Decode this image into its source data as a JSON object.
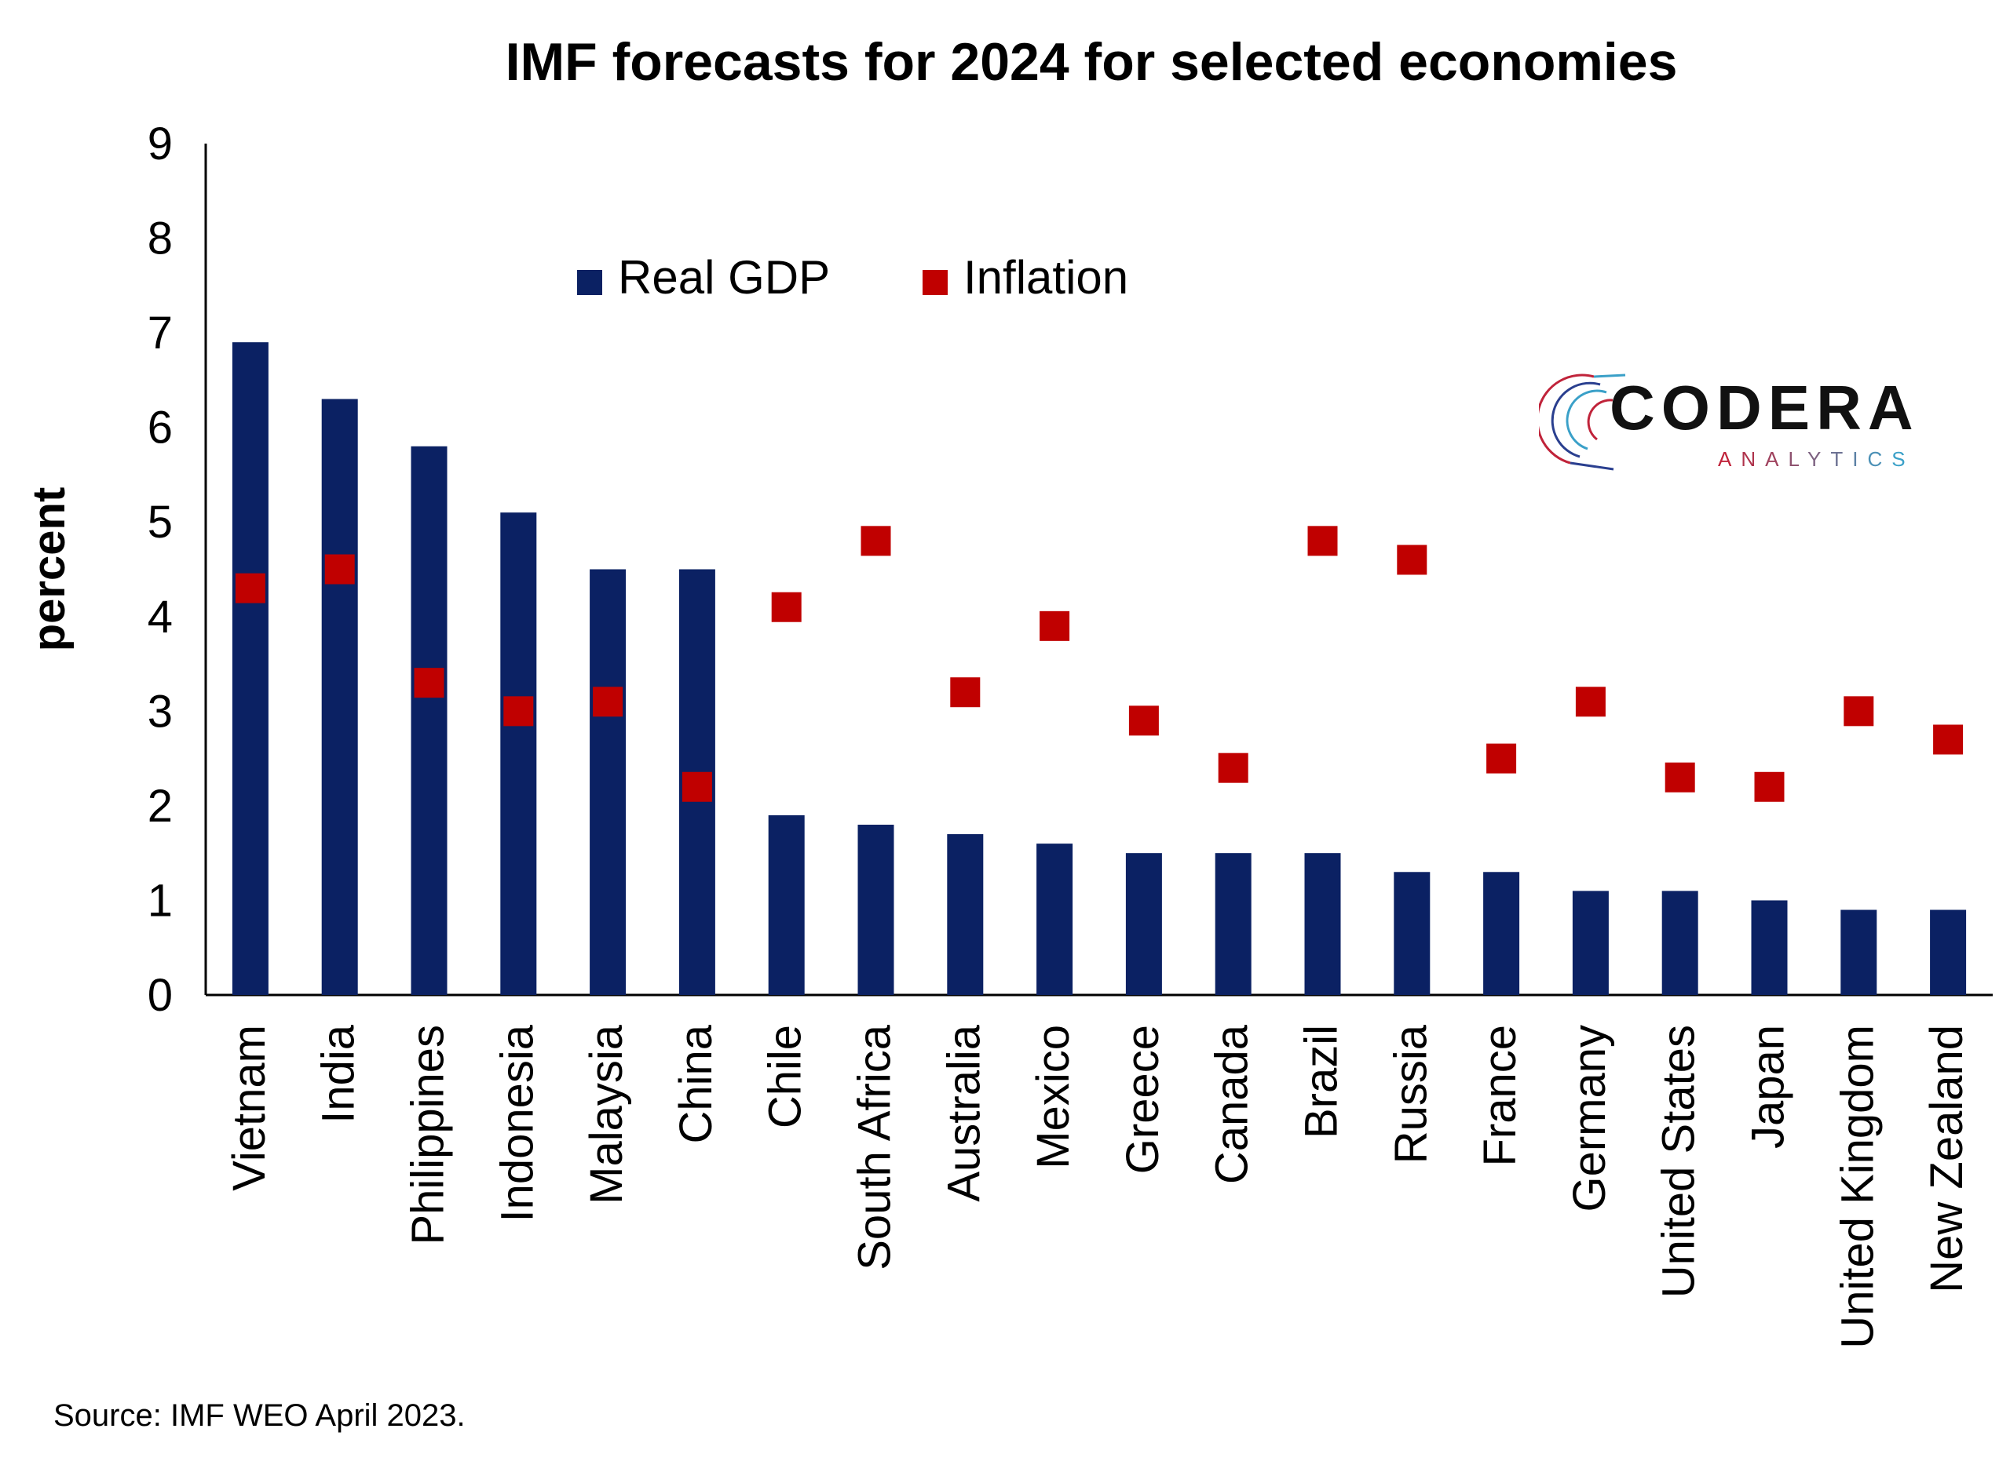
{
  "title": "IMF forecasts for 2024 for selected economies",
  "source": "Source: IMF WEO April 2023.",
  "logo": {
    "word": "CODERA",
    "sub": "ANALYTICS",
    "sub_color_left": "#c0233a",
    "sub_color_right": "#3aa0c8"
  },
  "colors": {
    "gdp": "#0b2163",
    "inflation": "#c00000",
    "axis": "#000000"
  },
  "chart_data": {
    "type": "bar",
    "ylabel": "percent",
    "xlabel": "",
    "ylim": [
      0,
      9
    ],
    "yticks": [
      0,
      1,
      2,
      3,
      4,
      5,
      6,
      7,
      8,
      9
    ],
    "legend_position": "top-center",
    "categories": [
      "Vietnam",
      "India",
      "Philippines",
      "Indonesia",
      "Malaysia",
      "China",
      "Chile",
      "South Africa",
      "Australia",
      "Mexico",
      "Greece",
      "Canada",
      "Brazil",
      "Russia",
      "France",
      "Germany",
      "United States",
      "Japan",
      "United Kingdom",
      "New Zealand"
    ],
    "series": [
      {
        "name": "Real GDP",
        "kind": "bar",
        "values": [
          6.9,
          6.3,
          5.8,
          5.1,
          4.5,
          4.5,
          1.9,
          1.8,
          1.7,
          1.6,
          1.5,
          1.5,
          1.5,
          1.3,
          1.3,
          1.1,
          1.1,
          1.0,
          0.9,
          0.9
        ]
      },
      {
        "name": "Inflation",
        "kind": "marker",
        "values": [
          4.3,
          4.5,
          3.3,
          3.0,
          3.1,
          2.2,
          4.1,
          4.8,
          3.2,
          3.9,
          2.9,
          2.4,
          4.8,
          4.6,
          2.5,
          3.1,
          2.3,
          2.2,
          3.0,
          2.7
        ]
      }
    ]
  }
}
